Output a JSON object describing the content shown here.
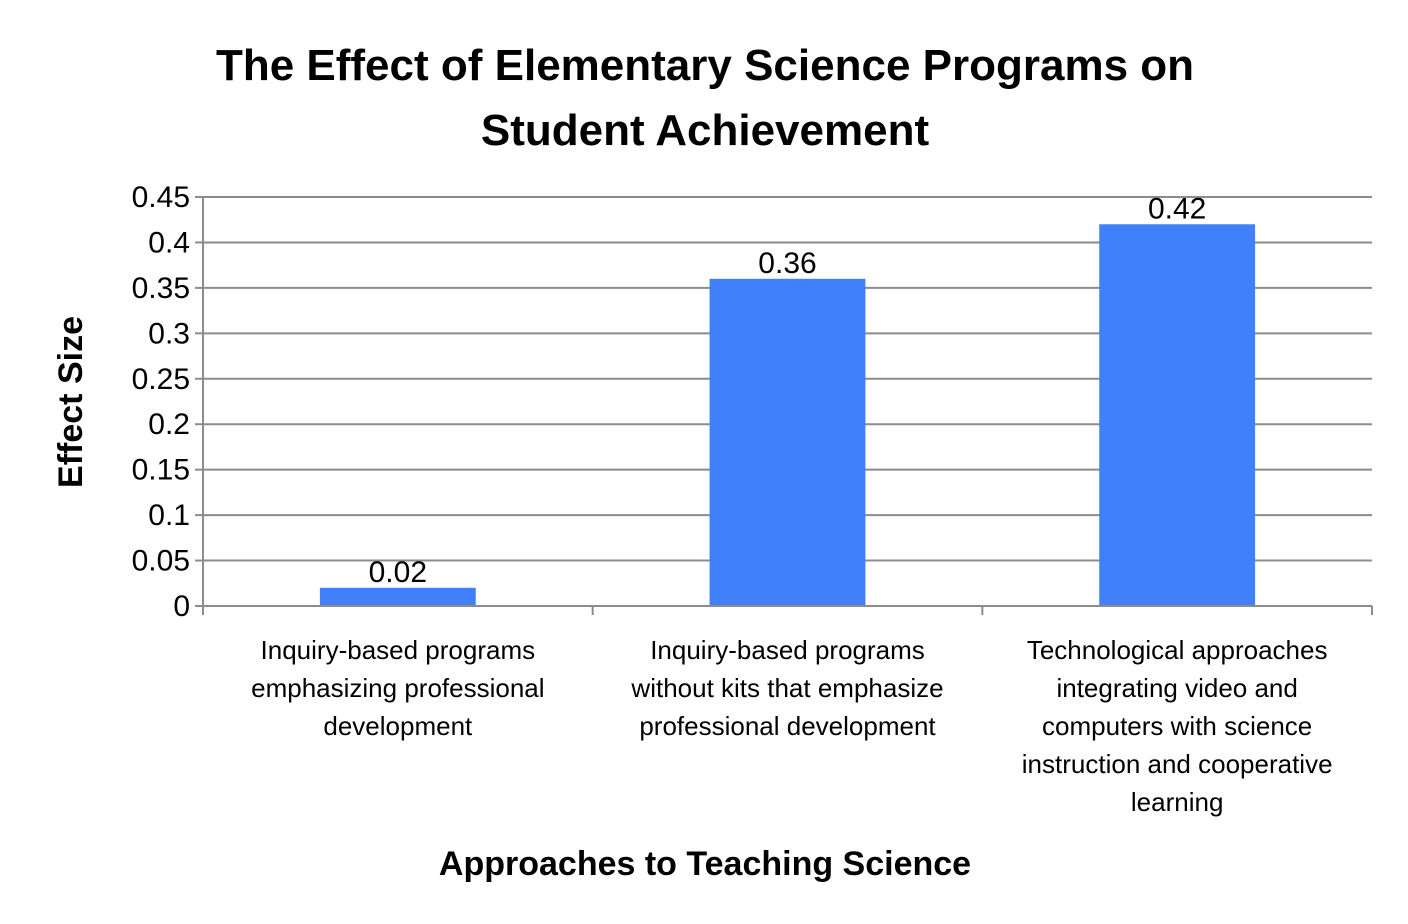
{
  "chart_data": {
    "type": "bar",
    "title_lines": [
      "The Effect of Elementary Science Programs on",
      "Student Achievement"
    ],
    "xlabel": "Approaches to Teaching Science",
    "ylabel": "Effect Size",
    "categories": [
      "Inquiry-based programs emphasizing professional development",
      "Inquiry-based programs without kits that emphasize professional development",
      "Technological approaches integrating video and computers with science instruction and cooperative learning"
    ],
    "category_lines": [
      [
        "Inquiry-based programs",
        "emphasizing professional",
        "development"
      ],
      [
        "Inquiry-based programs",
        "without kits that emphasize",
        "professional development"
      ],
      [
        "Technological approaches",
        "integrating video and",
        "computers with science",
        "instruction and cooperative",
        "learning"
      ]
    ],
    "values": [
      0.02,
      0.36,
      0.42
    ],
    "data_labels": [
      "0.02",
      "0.36",
      "0.42"
    ],
    "ylim": [
      0,
      0.45
    ],
    "yticks": [
      "0",
      "0.05",
      "0.1",
      "0.15",
      "0.2",
      "0.25",
      "0.3",
      "0.35",
      "0.4",
      "0.45"
    ],
    "grid": true,
    "legend": "none",
    "bar_color": "#4180fb"
  }
}
